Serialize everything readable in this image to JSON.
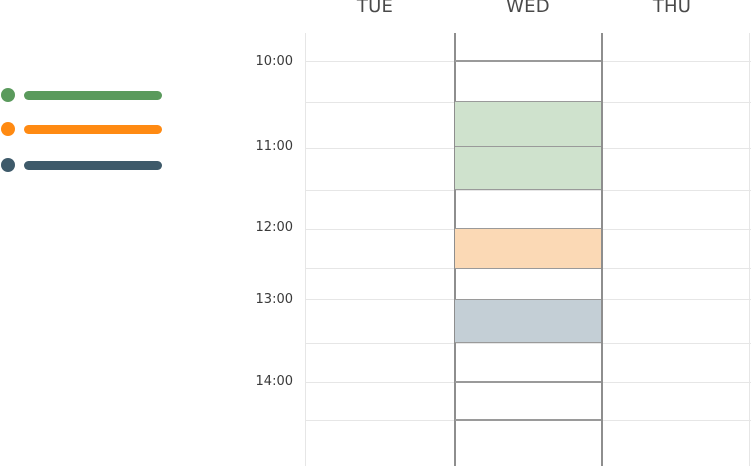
{
  "legend": {
    "items": [
      {
        "color": "#5a9a5c"
      },
      {
        "color": "#ff8a12"
      },
      {
        "color": "#3e5a6a"
      }
    ]
  },
  "calendar": {
    "days": [
      "TUE",
      "WED",
      "THU"
    ],
    "times": [
      "10:00",
      "11:00",
      "12:00",
      "13:00",
      "14:00"
    ],
    "events": [
      {
        "color_name": "green"
      },
      {
        "color_name": "orange"
      },
      {
        "color_name": "slate"
      }
    ]
  }
}
